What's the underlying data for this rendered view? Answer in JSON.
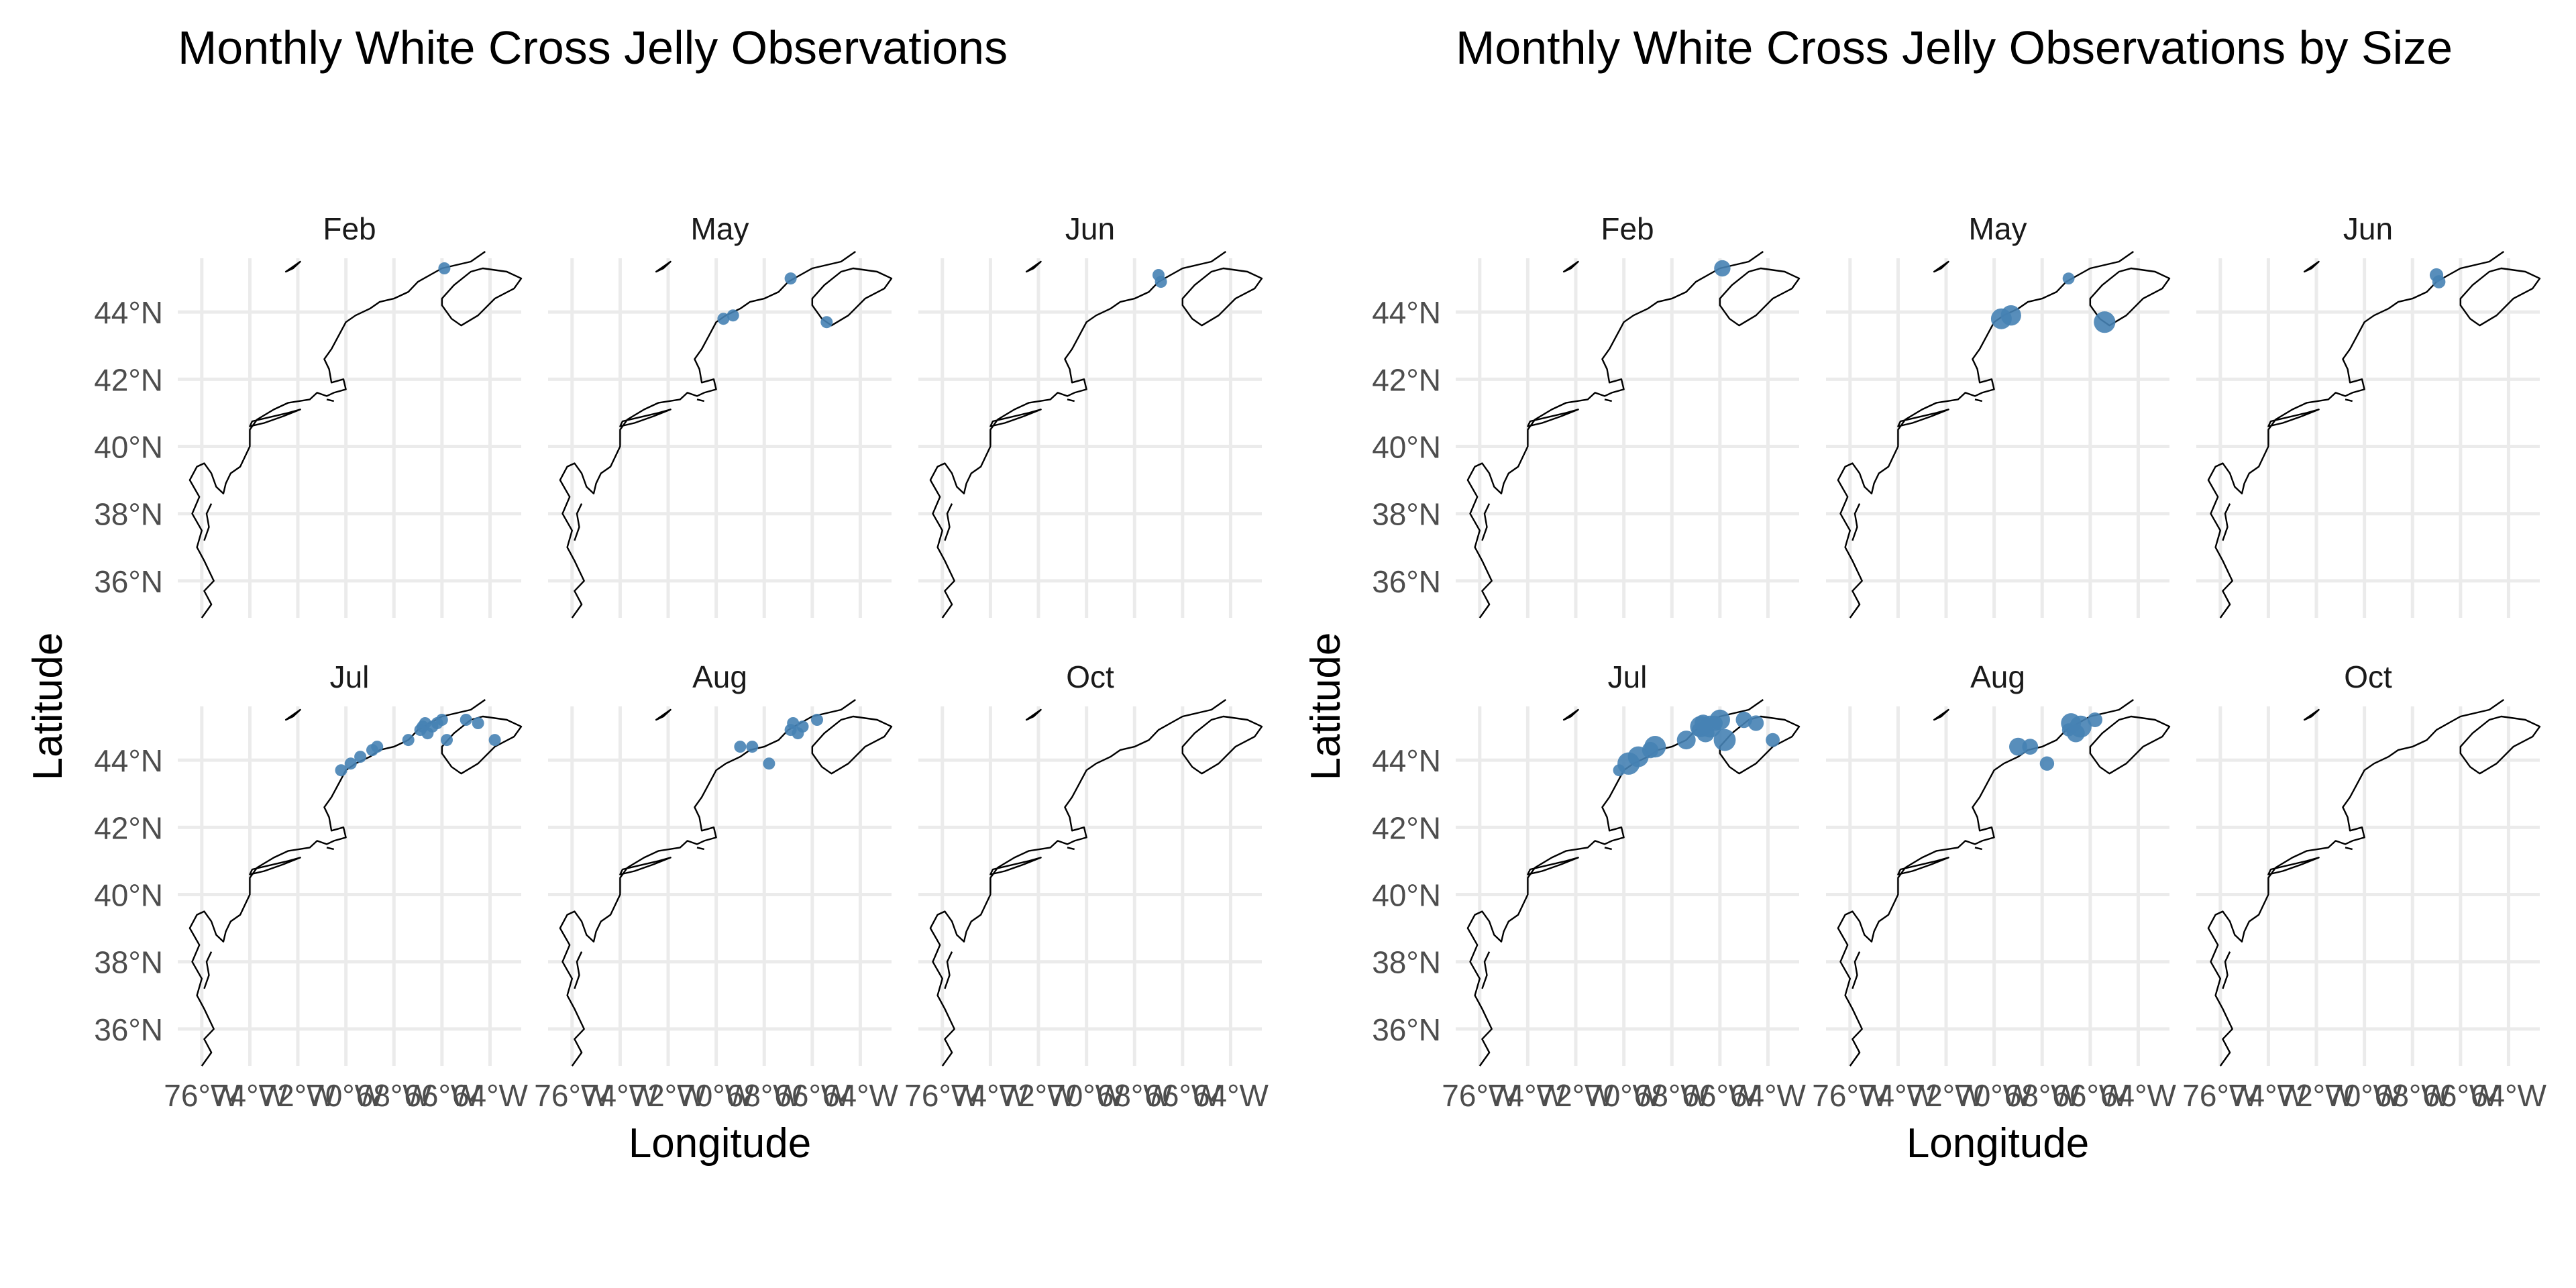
{
  "figure": {
    "background": "#ffffff"
  },
  "chart_data": [
    {
      "type": "scatter",
      "subtype": "faceted-map",
      "title": "Monthly White Cross Jelly Observations",
      "xlabel": "Longitude",
      "ylabel": "Latitude",
      "xlim": [
        -77,
        -62.7
      ],
      "ylim": [
        34.9,
        45.6
      ],
      "x_ticks": [
        -76,
        -74,
        -72,
        -70,
        -68,
        -66,
        -64
      ],
      "x_tick_labels": [
        "76°W",
        "74°W",
        "72°W",
        "70°W",
        "68°W",
        "66°W",
        "64°W"
      ],
      "y_ticks": [
        36,
        38,
        40,
        42,
        44
      ],
      "y_tick_labels": [
        "36°N",
        "38°N",
        "40°N",
        "42°N",
        "44°N"
      ],
      "grid": true,
      "legend": "none",
      "point_color": "#4682b4",
      "facets": [
        {
          "label": "Feb",
          "points": [
            {
              "lon": -65.9,
              "lat": 45.3
            }
          ]
        },
        {
          "label": "May",
          "points": [
            {
              "lon": -69.7,
              "lat": 43.8
            },
            {
              "lon": -69.3,
              "lat": 43.9
            },
            {
              "lon": -66.9,
              "lat": 45.0
            },
            {
              "lon": -65.4,
              "lat": 43.7
            }
          ]
        },
        {
          "label": "Jun",
          "points": [
            {
              "lon": -66.9,
              "lat": 44.9
            },
            {
              "lon": -67.0,
              "lat": 45.1
            }
          ]
        },
        {
          "label": "Jul",
          "points": [
            {
              "lon": -70.2,
              "lat": 43.7
            },
            {
              "lon": -69.8,
              "lat": 43.9
            },
            {
              "lon": -69.4,
              "lat": 44.1
            },
            {
              "lon": -68.9,
              "lat": 44.3
            },
            {
              "lon": -68.7,
              "lat": 44.4
            },
            {
              "lon": -67.4,
              "lat": 44.6
            },
            {
              "lon": -66.9,
              "lat": 44.9
            },
            {
              "lon": -66.8,
              "lat": 45.0
            },
            {
              "lon": -66.7,
              "lat": 45.1
            },
            {
              "lon": -66.6,
              "lat": 44.8
            },
            {
              "lon": -66.4,
              "lat": 45.0
            },
            {
              "lon": -66.2,
              "lat": 45.1
            },
            {
              "lon": -66.0,
              "lat": 45.2
            },
            {
              "lon": -65.8,
              "lat": 44.6
            },
            {
              "lon": -65.0,
              "lat": 45.2
            },
            {
              "lon": -64.5,
              "lat": 45.1
            },
            {
              "lon": -63.8,
              "lat": 44.6
            }
          ]
        },
        {
          "label": "Aug",
          "points": [
            {
              "lon": -69.0,
              "lat": 44.4
            },
            {
              "lon": -68.5,
              "lat": 44.4
            },
            {
              "lon": -67.8,
              "lat": 43.9
            },
            {
              "lon": -66.9,
              "lat": 44.9
            },
            {
              "lon": -66.8,
              "lat": 45.1
            },
            {
              "lon": -66.6,
              "lat": 44.8
            },
            {
              "lon": -66.4,
              "lat": 45.0
            },
            {
              "lon": -65.8,
              "lat": 45.2
            }
          ]
        },
        {
          "label": "Oct",
          "points": []
        }
      ]
    },
    {
      "type": "scatter",
      "subtype": "faceted-map",
      "title": "Monthly White Cross Jelly Observations by Size",
      "xlabel": "Longitude",
      "ylabel": "Latitude",
      "xlim": [
        -77,
        -62.7
      ],
      "ylim": [
        34.9,
        45.6
      ],
      "x_ticks": [
        -76,
        -74,
        -72,
        -70,
        -68,
        -66,
        -64
      ],
      "x_tick_labels": [
        "76°W",
        "74°W",
        "72°W",
        "70°W",
        "68°W",
        "66°W",
        "64°W"
      ],
      "y_ticks": [
        36,
        38,
        40,
        42,
        44
      ],
      "y_tick_labels": [
        "36°N",
        "38°N",
        "40°N",
        "42°N",
        "44°N"
      ],
      "grid": true,
      "legend": "none",
      "point_color": "#4682b4",
      "facets": [
        {
          "label": "Feb",
          "points": [
            {
              "lon": -65.9,
              "lat": 45.3
            }
          ]
        },
        {
          "label": "May",
          "points": [
            {
              "lon": -69.7,
              "lat": 43.8
            },
            {
              "lon": -69.3,
              "lat": 43.9
            },
            {
              "lon": -66.9,
              "lat": 45.0
            },
            {
              "lon": -65.4,
              "lat": 43.7
            }
          ]
        },
        {
          "label": "Jun",
          "points": [
            {
              "lon": -66.9,
              "lat": 44.9
            },
            {
              "lon": -67.0,
              "lat": 45.1
            }
          ]
        },
        {
          "label": "Jul",
          "points": [
            {
              "lon": -70.2,
              "lat": 43.7
            },
            {
              "lon": -69.8,
              "lat": 43.9
            },
            {
              "lon": -69.4,
              "lat": 44.1
            },
            {
              "lon": -68.9,
              "lat": 44.3
            },
            {
              "lon": -68.7,
              "lat": 44.4
            },
            {
              "lon": -67.4,
              "lat": 44.6
            },
            {
              "lon": -66.9,
              "lat": 44.9
            },
            {
              "lon": -66.8,
              "lat": 45.0
            },
            {
              "lon": -66.7,
              "lat": 45.1
            },
            {
              "lon": -66.6,
              "lat": 44.8
            },
            {
              "lon": -66.4,
              "lat": 45.0
            },
            {
              "lon": -66.2,
              "lat": 45.1
            },
            {
              "lon": -66.0,
              "lat": 45.2
            },
            {
              "lon": -65.8,
              "lat": 44.6
            },
            {
              "lon": -65.0,
              "lat": 45.2
            },
            {
              "lon": -64.5,
              "lat": 45.1
            },
            {
              "lon": -63.8,
              "lat": 44.6
            }
          ]
        },
        {
          "label": "Aug",
          "points": [
            {
              "lon": -69.0,
              "lat": 44.4
            },
            {
              "lon": -68.5,
              "lat": 44.4
            },
            {
              "lon": -67.8,
              "lat": 43.9
            },
            {
              "lon": -66.9,
              "lat": 44.9
            },
            {
              "lon": -66.8,
              "lat": 45.1
            },
            {
              "lon": -66.6,
              "lat": 44.8
            },
            {
              "lon": -66.4,
              "lat": 45.0
            },
            {
              "lon": -65.8,
              "lat": 45.2
            }
          ]
        },
        {
          "label": "Oct",
          "points": []
        }
      ]
    }
  ]
}
